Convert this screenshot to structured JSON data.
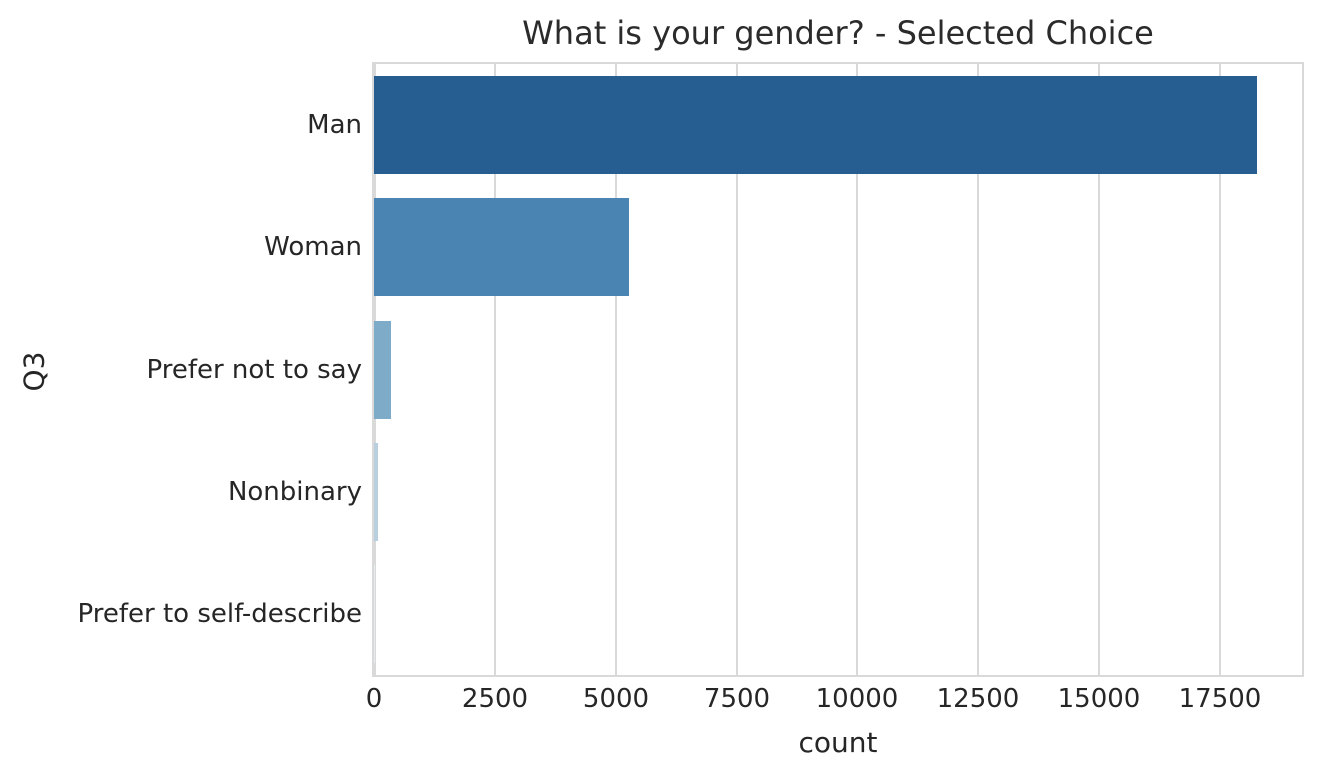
{
  "chart_data": {
    "type": "bar",
    "orientation": "horizontal",
    "title": "What is your gender? - Selected Choice",
    "xlabel": "count",
    "ylabel": "Q3",
    "categories": [
      "Man",
      "Woman",
      "Prefer not to say",
      "Nonbinary",
      "Prefer to self-describe"
    ],
    "values": [
      18266,
      5286,
      342,
      78,
      25
    ],
    "bar_colors": [
      "#265e92",
      "#4a84b2",
      "#7dabc8",
      "#b8cfdd",
      "#e1ecf3"
    ],
    "xticks": [
      0,
      2500,
      5000,
      7500,
      10000,
      12500,
      15000,
      17500
    ],
    "xlim": [
      0,
      19200
    ],
    "grid": "vertical",
    "legend": "none",
    "grid_color": "#d9d9d9",
    "text_color": "#262626",
    "background_color": "#ffffff"
  }
}
